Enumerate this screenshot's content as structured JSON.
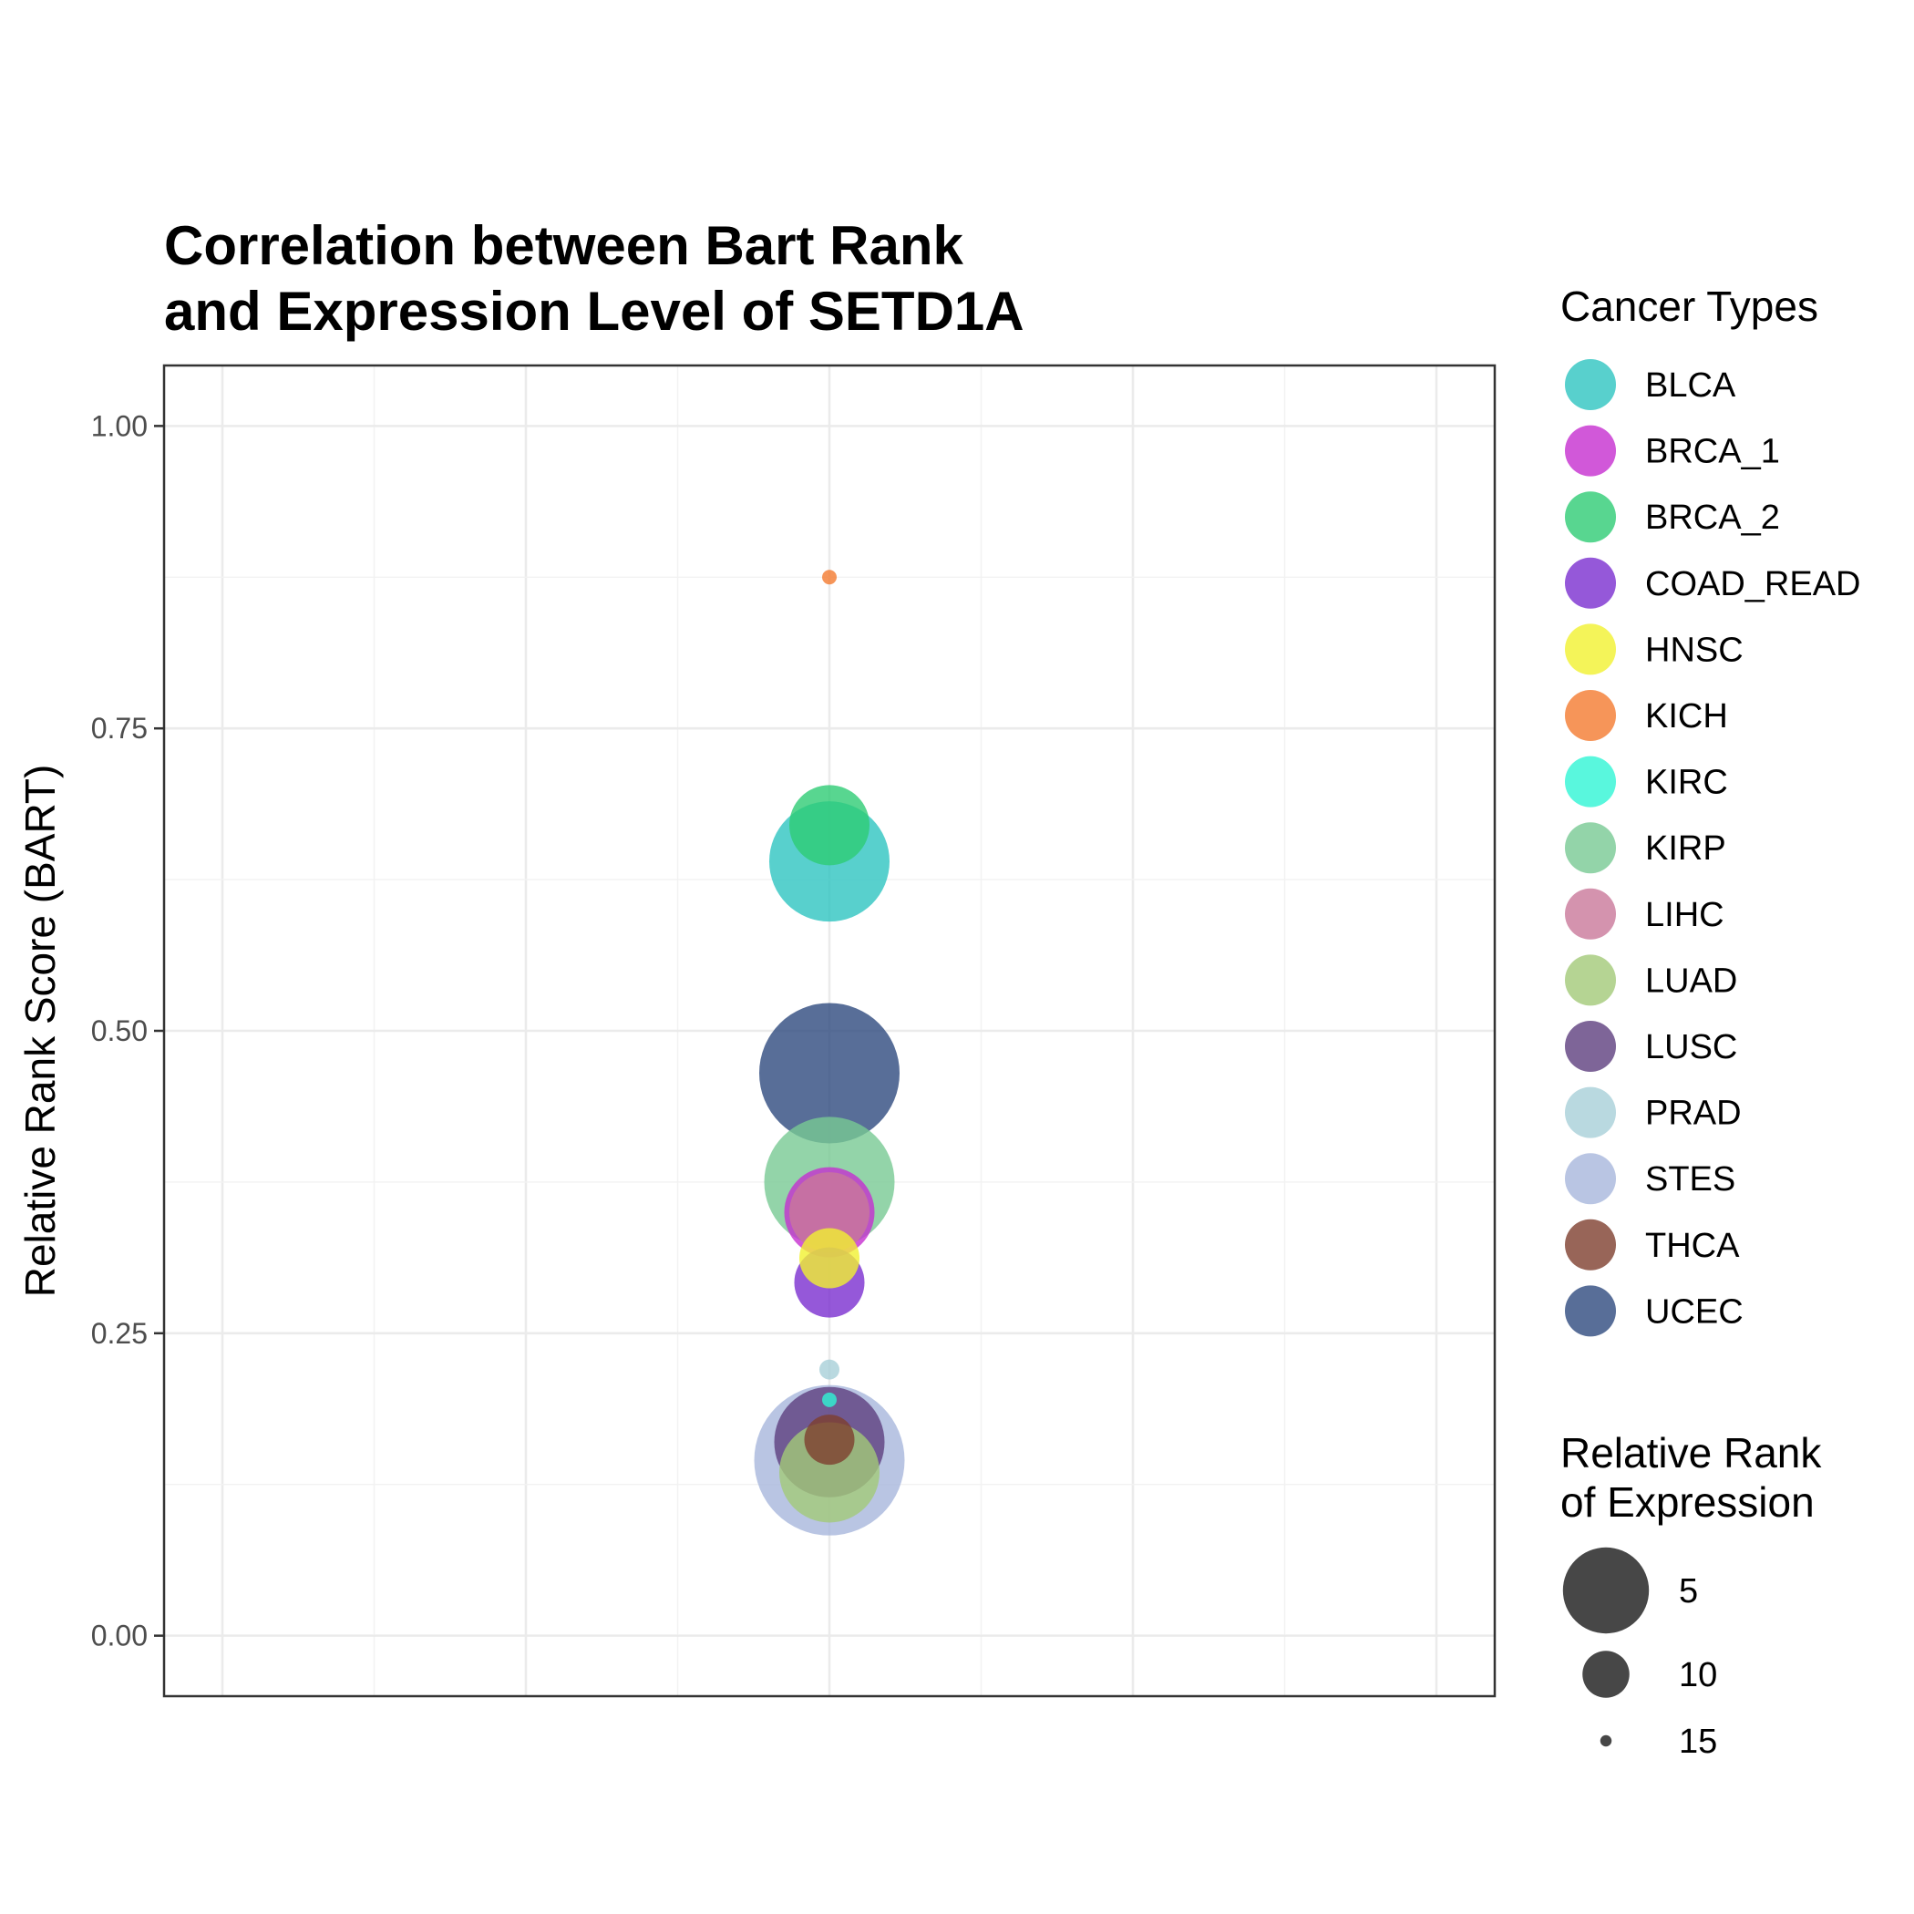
{
  "chart_data": {
    "type": "scatter",
    "title_lines": [
      "Correlation between Bart Rank",
      "and Expression Level of SETD1A"
    ],
    "xlabel": "",
    "ylabel": "Relative Rank Score (BART)",
    "ylim": [
      -0.05,
      1.05
    ],
    "y_ticks": [
      "0.00",
      "0.25",
      "0.50",
      "0.75",
      "1.00"
    ],
    "y_tick_values": [
      0,
      0.25,
      0.5,
      0.75,
      1.0
    ],
    "x_gridlines": 9,
    "grid": true,
    "legend_position": "right",
    "color_legend": {
      "title": "Cancer Types",
      "entries": [
        {
          "label": "BLCA",
          "color": "#2ec4c1"
        },
        {
          "label": "BRCA_1",
          "color": "#c52ecf"
        },
        {
          "label": "BRCA_2",
          "color": "#2ecc74"
        },
        {
          "label": "COAD_READ",
          "color": "#7b2ecf"
        },
        {
          "label": "HNSC",
          "color": "#f1f12f"
        },
        {
          "label": "KICH",
          "color": "#f47a30"
        },
        {
          "label": "KIRC",
          "color": "#2ff5d4"
        },
        {
          "label": "KIRP",
          "color": "#78c994"
        },
        {
          "label": "LIHC",
          "color": "#c9789a"
        },
        {
          "label": "LUAD",
          "color": "#a3c978"
        },
        {
          "label": "LUSC",
          "color": "#5e3f7e"
        },
        {
          "label": "PRAD",
          "color": "#a8cfd8"
        },
        {
          "label": "STES",
          "color": "#a8b7dc"
        },
        {
          "label": "THCA",
          "color": "#7e3f2e"
        },
        {
          "label": "UCEC",
          "color": "#2e4a7e"
        }
      ]
    },
    "size_legend": {
      "title_lines": [
        "Relative Rank",
        "of Expression"
      ],
      "entries": [
        {
          "label": "5",
          "value": 5
        },
        {
          "label": "10",
          "value": 10
        },
        {
          "label": "15",
          "value": 15
        }
      ]
    },
    "points": [
      {
        "name": "STES",
        "y": 0.145,
        "expr_rank": 1
      },
      {
        "name": "UCEC",
        "y": 0.465,
        "expr_rank": 2
      },
      {
        "name": "KIRP",
        "y": 0.375,
        "expr_rank": 3
      },
      {
        "name": "BLCA",
        "y": 0.64,
        "expr_rank": 4
      },
      {
        "name": "LUSC",
        "y": 0.16,
        "expr_rank": 5
      },
      {
        "name": "LUAD",
        "y": 0.135,
        "expr_rank": 6
      },
      {
        "name": "BRCA_1",
        "y": 0.35,
        "expr_rank": 7
      },
      {
        "name": "BRCA_2",
        "y": 0.67,
        "expr_rank": 8
      },
      {
        "name": "LIHC",
        "y": 0.35,
        "expr_rank": 8
      },
      {
        "name": "COAD_READ",
        "y": 0.292,
        "expr_rank": 9
      },
      {
        "name": "HNSC",
        "y": 0.312,
        "expr_rank": 10
      },
      {
        "name": "THCA",
        "y": 0.162,
        "expr_rank": 11
      },
      {
        "name": "PRAD",
        "y": 0.22,
        "expr_rank": 14
      },
      {
        "name": "KIRC",
        "y": 0.195,
        "expr_rank": 15
      },
      {
        "name": "KICH",
        "y": 0.875,
        "expr_rank": 15
      }
    ]
  }
}
